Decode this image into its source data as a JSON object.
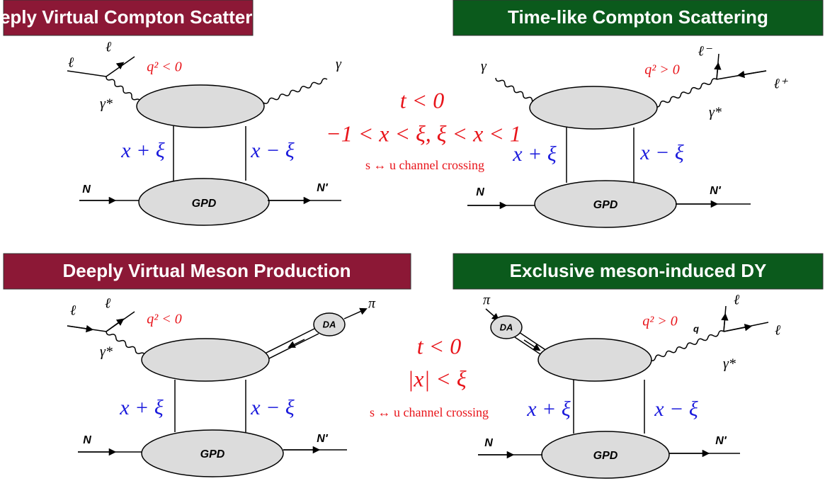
{
  "panels": [
    {
      "title": "Deeply Virtual Compton Scattering",
      "labels": [
        "ℓ",
        "ℓ",
        "q² < 0",
        "γ*",
        "γ",
        "x + ξ",
        "x − ξ",
        "N",
        "GPD",
        "N′"
      ]
    },
    {
      "title": "Time-like Compton Scattering",
      "labels": [
        "γ",
        "q² > 0",
        "ℓ⁻",
        "ℓ⁺",
        "γ*",
        "x + ξ",
        "x − ξ",
        "N",
        "GPD",
        "N′"
      ]
    },
    {
      "title": "Deeply Virtual Meson Production",
      "labels": [
        "ℓ",
        "ℓ",
        "q² < 0",
        "γ*",
        "DA",
        "π",
        "x + ξ",
        "x − ξ",
        "N",
        "GPD",
        "N′"
      ]
    },
    {
      "title": "Exclusive meson-induced DY",
      "labels": [
        "π",
        "DA",
        "q² > 0",
        "q",
        "ℓ",
        "ℓ",
        "γ*",
        "x + ξ",
        "x − ξ",
        "N",
        "GPD",
        "N′"
      ]
    }
  ],
  "crossing": [
    {
      "lines": [
        "t < 0",
        "−1 < x < ξ, ξ < x < 1",
        "s ↔ u channel crossing"
      ]
    },
    {
      "lines": [
        "t < 0",
        "|x| < ξ",
        "s ↔ u channel crossing"
      ]
    }
  ]
}
